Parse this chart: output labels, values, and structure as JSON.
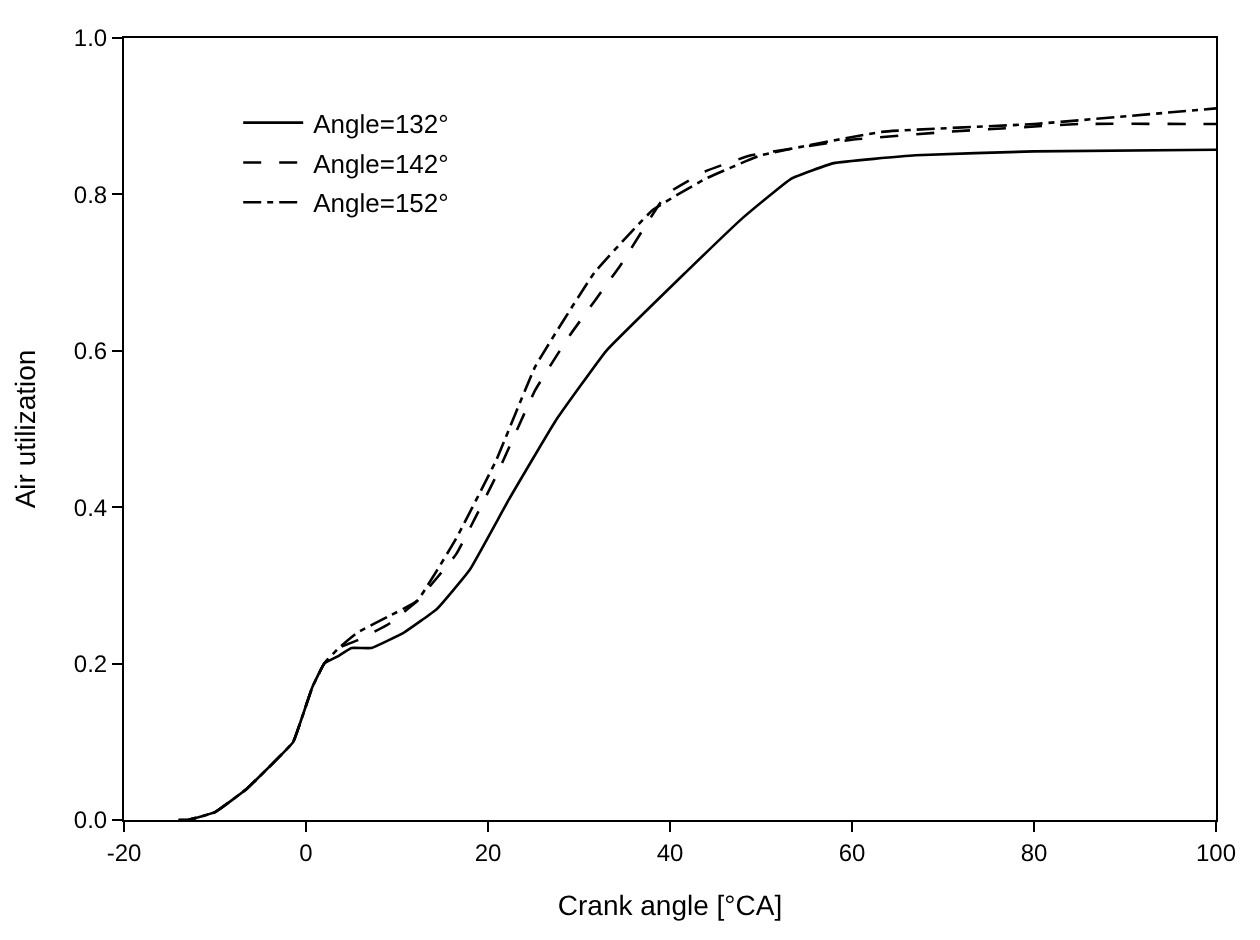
{
  "chart_data": {
    "type": "line",
    "xlabel": "Crank angle [°CA]",
    "ylabel": "Air utilization",
    "xlim": [
      -20,
      100
    ],
    "xticks": [
      -20,
      0,
      20,
      40,
      60,
      80,
      100
    ],
    "ylim": [
      0,
      1.0
    ],
    "yticks": [
      {
        "value": 0,
        "label": "0.0"
      },
      0.2,
      0.4,
      0.6,
      0.8,
      {
        "value": 1.0,
        "label": "1.0"
      }
    ],
    "legend": "top left",
    "marker": "none",
    "series": [
      {
        "name": "Angle=132°",
        "color": "#000000",
        "line_style": "solid",
        "x": [
          -14,
          -13,
          -10,
          -6.5,
          -3,
          -1.4,
          0.7,
          2,
          3.6,
          5,
          7.2,
          10.8,
          14.4,
          18,
          22.3,
          27.4,
          33,
          41.7,
          48,
          53.3,
          58,
          67,
          80,
          100
        ],
        "values": [
          0,
          0,
          0.01,
          0.04,
          0.08,
          0.1,
          0.17,
          0.2,
          0.21,
          0.22,
          0.22,
          0.24,
          0.27,
          0.32,
          0.41,
          0.51,
          0.6,
          0.7,
          0.77,
          0.82,
          0.84,
          0.85,
          0.855,
          0.857
        ]
      },
      {
        "name": "Angle=142°",
        "color": "#000000",
        "line_style": "dashed",
        "x": [
          -14,
          -13,
          -10,
          -6.5,
          -3,
          -1.4,
          0.7,
          2,
          3.6,
          5.7,
          9,
          12.2,
          16.5,
          20.9,
          25.2,
          29,
          34.6,
          39.6,
          44,
          48.9,
          60,
          70.5,
          85,
          100
        ],
        "values": [
          0,
          0,
          0.01,
          0.04,
          0.08,
          0.1,
          0.17,
          0.2,
          0.22,
          0.23,
          0.25,
          0.28,
          0.34,
          0.44,
          0.55,
          0.62,
          0.71,
          0.8,
          0.83,
          0.85,
          0.87,
          0.88,
          0.89,
          0.89
        ]
      },
      {
        "name": "Angle=152°",
        "color": "#000000",
        "line_style": "dashdot",
        "x": [
          -14,
          -13,
          -10,
          -6.5,
          -3,
          -1.4,
          0.7,
          2,
          3.6,
          5.7,
          9,
          12.2,
          16.5,
          20.9,
          25.2,
          31.7,
          38.1,
          43.9,
          50,
          63.3,
          80,
          100
        ],
        "values": [
          0,
          0,
          0.01,
          0.04,
          0.08,
          0.1,
          0.17,
          0.2,
          0.22,
          0.24,
          0.26,
          0.28,
          0.36,
          0.46,
          0.58,
          0.7,
          0.78,
          0.82,
          0.85,
          0.88,
          0.89,
          0.91
        ]
      }
    ]
  }
}
